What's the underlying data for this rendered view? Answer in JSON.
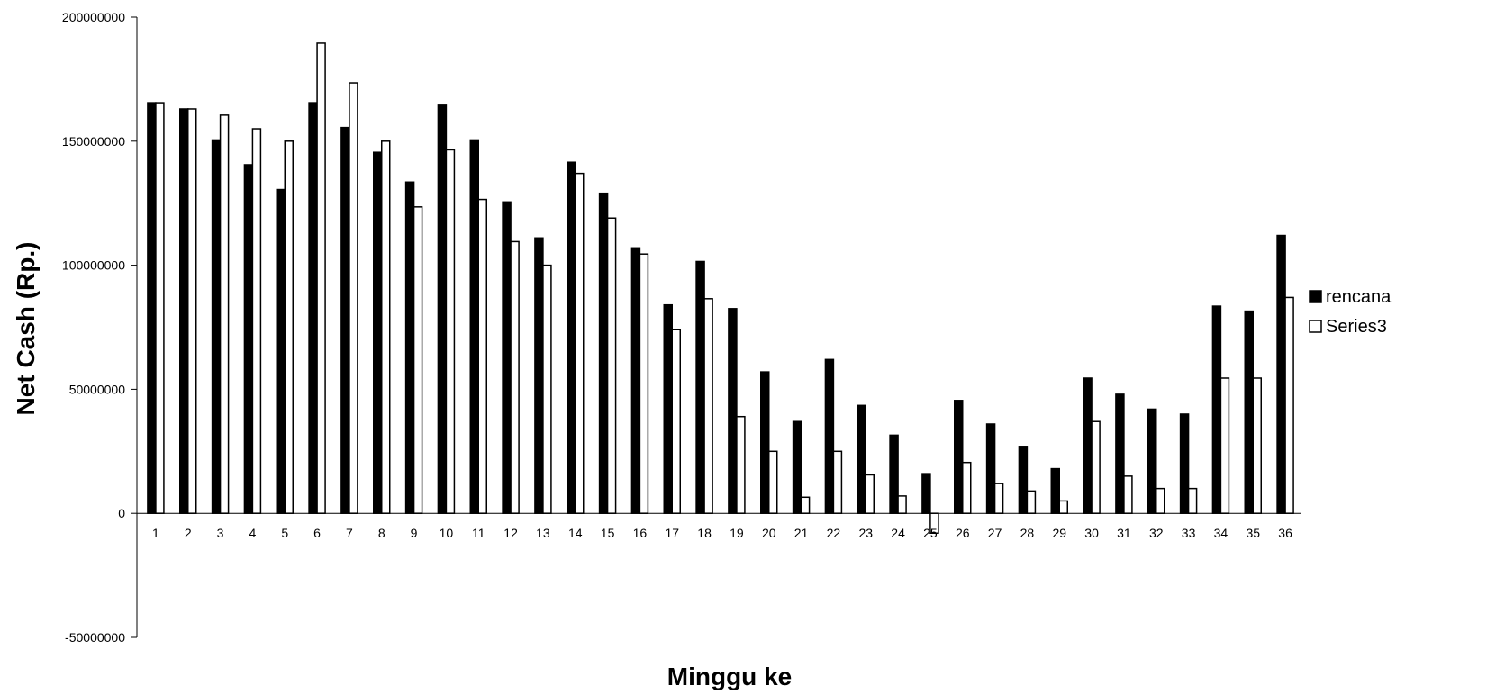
{
  "chart_data": {
    "type": "bar",
    "categories": [
      "1",
      "2",
      "3",
      "4",
      "5",
      "6",
      "7",
      "8",
      "9",
      "10",
      "11",
      "12",
      "13",
      "14",
      "15",
      "16",
      "17",
      "18",
      "19",
      "20",
      "21",
      "22",
      "23",
      "24",
      "25",
      "26",
      "27",
      "28",
      "29",
      "30",
      "31",
      "32",
      "33",
      "34",
      "35",
      "36"
    ],
    "series": [
      {
        "name": "rencana",
        "color": "#000000",
        "values": [
          165500000,
          163000000,
          150500000,
          140500000,
          130500000,
          165500000,
          155500000,
          145500000,
          133500000,
          164500000,
          150500000,
          125500000,
          111000000,
          141500000,
          129000000,
          107000000,
          84000000,
          101500000,
          82500000,
          57000000,
          37000000,
          62000000,
          43500000,
          31500000,
          16000000,
          45500000,
          36000000,
          27000000,
          18000000,
          54500000,
          48000000,
          42000000,
          40000000,
          83500000,
          81500000,
          112000000
        ]
      },
      {
        "name": "Series3",
        "color": "#ffffff",
        "values": [
          165500000,
          163000000,
          160500000,
          155000000,
          150000000,
          189500000,
          173500000,
          150000000,
          123500000,
          146500000,
          126500000,
          109500000,
          100000000,
          137000000,
          119000000,
          104500000,
          74000000,
          86500000,
          39000000,
          25000000,
          6500000,
          25000000,
          15500000,
          7000000,
          -8000000,
          20500000,
          12000000,
          9000000,
          5000000,
          37000000,
          15000000,
          10000000,
          10000000,
          54500000,
          54500000,
          87000000
        ]
      }
    ],
    "title": "",
    "xlabel": "Minggu ke",
    "ylabel": "Net Cash (Rp.)",
    "ylim": [
      -50000000,
      200000000
    ],
    "yticks": [
      {
        "value": -50000000,
        "label": "-50000000"
      },
      {
        "value": 0,
        "label": "0"
      },
      {
        "value": 50000000,
        "label": "50000000"
      },
      {
        "value": 100000000,
        "label": "100000000"
      },
      {
        "value": 150000000,
        "label": "150000000"
      },
      {
        "value": 200000000,
        "label": "200000000"
      }
    ],
    "grid": false,
    "legend_position": "right"
  }
}
